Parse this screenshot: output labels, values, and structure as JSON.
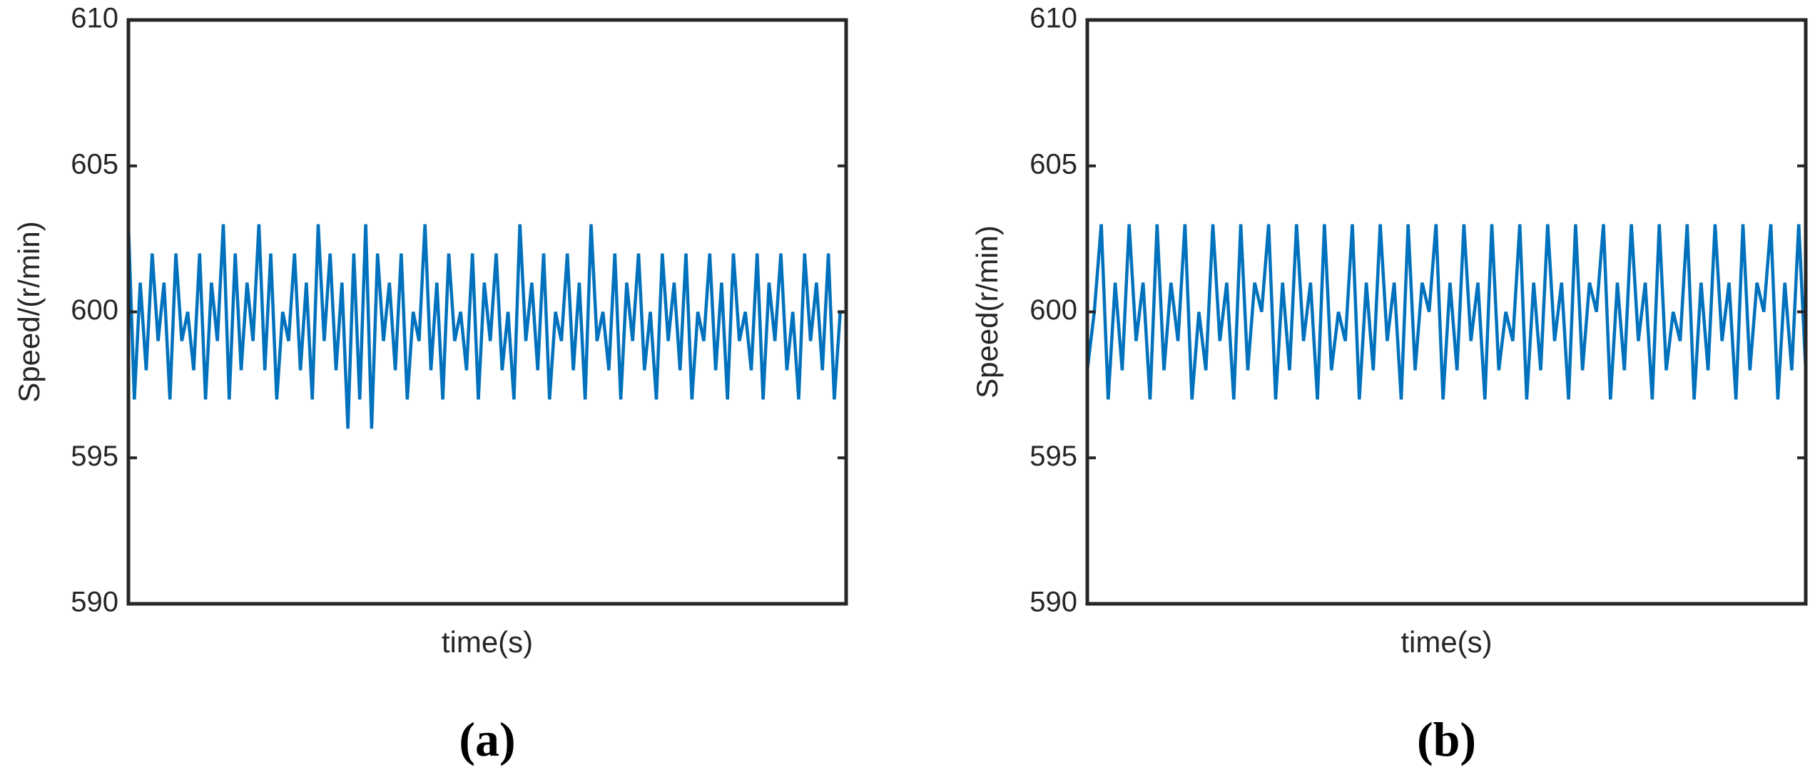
{
  "chart_data": [
    {
      "type": "line",
      "caption": "(a)",
      "xlabel": "time(s)",
      "ylabel": "Speed/(r/min)",
      "color": "#0072bd",
      "ylim": [
        590,
        610
      ],
      "yticks": [
        590,
        595,
        600,
        605,
        610
      ],
      "ticks_both_sides": true,
      "box": true,
      "values": [
        603,
        597,
        601,
        598,
        602,
        599,
        601,
        597,
        602,
        599,
        600,
        598,
        602,
        597,
        601,
        599,
        603,
        597,
        602,
        598,
        601,
        599,
        603,
        598,
        602,
        597,
        600,
        599,
        602,
        598,
        601,
        597,
        603,
        599,
        602,
        598,
        601,
        596,
        602,
        597,
        603,
        596,
        602,
        599,
        601,
        598,
        602,
        597,
        600,
        599,
        603,
        598,
        601,
        597,
        602,
        599,
        600,
        598,
        602,
        597,
        601,
        599,
        602,
        598,
        600,
        597,
        603,
        599,
        601,
        598,
        602,
        597,
        600,
        599,
        602,
        598,
        601,
        597,
        603,
        599,
        600,
        598,
        602,
        597,
        601,
        599,
        602,
        598,
        600,
        597,
        602,
        599,
        601,
        598,
        602,
        597,
        600,
        599,
        602,
        598,
        601,
        597,
        602,
        599,
        600,
        598,
        602,
        597,
        601,
        599,
        602,
        598,
        600,
        597,
        602,
        599,
        601,
        598,
        602,
        597,
        600,
        600
      ]
    },
    {
      "type": "line",
      "caption": "(b)",
      "xlabel": "time(s)",
      "ylabel": "Speed(r/min)",
      "color": "#0072bd",
      "ylim": [
        590,
        610
      ],
      "yticks": [
        590,
        595,
        600,
        605,
        610
      ],
      "ticks_both_sides": true,
      "box": true,
      "values": [
        598,
        600,
        603,
        597,
        601,
        598,
        603,
        599,
        601,
        597,
        603,
        598,
        601,
        599,
        603,
        597,
        600,
        598,
        603,
        599,
        601,
        597,
        603,
        598,
        601,
        600,
        603,
        597,
        601,
        598,
        603,
        599,
        601,
        597,
        603,
        598,
        600,
        599,
        603,
        597,
        601,
        598,
        603,
        599,
        601,
        597,
        603,
        598,
        601,
        600,
        603,
        597,
        601,
        598,
        603,
        599,
        601,
        597,
        603,
        598,
        600,
        599,
        603,
        597,
        601,
        598,
        603,
        599,
        601,
        597,
        603,
        598,
        601,
        600,
        603,
        597,
        601,
        598,
        603,
        599,
        601,
        597,
        603,
        598,
        600,
        599,
        603,
        597,
        601,
        598,
        603,
        599,
        601,
        597,
        603,
        598,
        601,
        600,
        603,
        597,
        601,
        598,
        603,
        598
      ]
    }
  ]
}
